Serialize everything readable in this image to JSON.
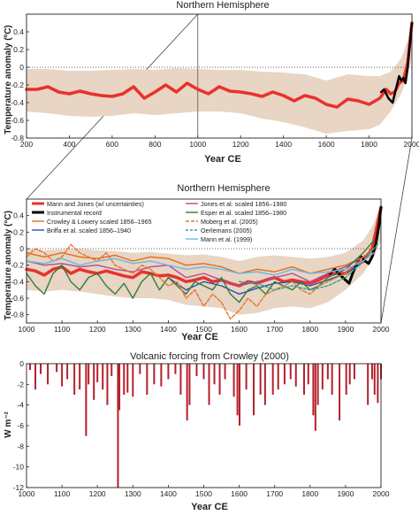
{
  "chart_data": [
    {
      "type": "line",
      "title": "Northern Hemisphere",
      "xlabel": "Year CE",
      "ylabel": "Temperature anomaly (ºC)",
      "xlim": [
        200,
        2000
      ],
      "ylim": [
        -0.8,
        0.6
      ],
      "xticks": [
        "200",
        "400",
        "600",
        "800",
        "1000",
        "1200",
        "1400",
        "1600",
        "1800",
        "2000"
      ],
      "yticks": [
        "0.4",
        "0.2",
        "0",
        "-0.2",
        "-0.4",
        "-0.6",
        "-0.8"
      ],
      "xtick_values": [
        200,
        400,
        600,
        800,
        1000,
        1200,
        1400,
        1600,
        1800,
        2000
      ],
      "ytick_values": [
        0.4,
        0.2,
        0,
        -0.2,
        -0.4,
        -0.6,
        -0.8
      ],
      "reference_line": 0,
      "highlight_year": 1000,
      "uncertainty_band": {
        "color": "#e8d5c4",
        "x": [
          200,
          300,
          400,
          500,
          600,
          700,
          800,
          900,
          1000,
          1100,
          1200,
          1300,
          1400,
          1500,
          1600,
          1700,
          1800,
          1850,
          1900,
          1950,
          1980,
          2000
        ],
        "upper": [
          -0.02,
          -0.02,
          -0.04,
          -0.04,
          -0.03,
          -0.02,
          -0.03,
          -0.01,
          -0.02,
          -0.03,
          -0.03,
          -0.05,
          -0.06,
          -0.08,
          -0.15,
          -0.08,
          -0.1,
          -0.1,
          -0.05,
          0.1,
          0.3,
          0.5
        ],
        "lower": [
          -0.5,
          -0.52,
          -0.55,
          -0.56,
          -0.55,
          -0.52,
          -0.54,
          -0.52,
          -0.5,
          -0.5,
          -0.52,
          -0.58,
          -0.62,
          -0.68,
          -0.75,
          -0.72,
          -0.7,
          -0.65,
          -0.5,
          -0.3,
          -0.1,
          0.1
        ]
      },
      "series": [
        {
          "color": "#e8322b",
          "width": 3.5,
          "x": [
            200,
            250,
            300,
            350,
            400,
            450,
            500,
            550,
            600,
            650,
            700,
            750,
            800,
            850,
            900,
            950,
            1000,
            1050,
            1100,
            1150,
            1200,
            1250,
            1300,
            1350,
            1400,
            1450,
            1500,
            1550,
            1600,
            1650,
            1700,
            1750,
            1800,
            1850,
            1880,
            1900,
            1920,
            1940,
            1960,
            1980,
            2000
          ],
          "y": [
            -0.25,
            -0.25,
            -0.22,
            -0.28,
            -0.3,
            -0.27,
            -0.3,
            -0.32,
            -0.33,
            -0.3,
            -0.22,
            -0.35,
            -0.28,
            -0.2,
            -0.28,
            -0.18,
            -0.25,
            -0.3,
            -0.22,
            -0.27,
            -0.28,
            -0.3,
            -0.33,
            -0.28,
            -0.32,
            -0.38,
            -0.32,
            -0.35,
            -0.42,
            -0.45,
            -0.36,
            -0.38,
            -0.42,
            -0.35,
            -0.25,
            -0.3,
            -0.28,
            -0.18,
            -0.15,
            0.05,
            0.5
          ]
        },
        {
          "color": "#000000",
          "width": 2.5,
          "x": [
            1856,
            1870,
            1890,
            1910,
            1920,
            1940,
            1950,
            1960,
            1970,
            1980,
            1990,
            2000
          ],
          "y": [
            -0.28,
            -0.25,
            -0.35,
            -0.4,
            -0.3,
            -0.1,
            -0.15,
            -0.12,
            -0.18,
            0.0,
            0.25,
            0.5
          ]
        }
      ]
    },
    {
      "type": "line",
      "title": "Northern Hemisphere",
      "xlabel": "Year CE",
      "ylabel": "Temperature anomaly (°C)",
      "xlim": [
        1000,
        2000
      ],
      "ylim": [
        -0.9,
        0.6
      ],
      "xticks": [
        "1000",
        "1100",
        "1200",
        "1300",
        "1400",
        "1500",
        "1600",
        "1700",
        "1800",
        "1900",
        "2000"
      ],
      "yticks": [
        "0.4",
        "0.2",
        "0",
        "-0.2",
        "-0.4",
        "-0.6",
        "-0.8"
      ],
      "xtick_values": [
        1000,
        1100,
        1200,
        1300,
        1400,
        1500,
        1600,
        1700,
        1800,
        1900,
        2000
      ],
      "ytick_values": [
        0.4,
        0.2,
        0,
        -0.2,
        -0.4,
        -0.6,
        -0.8
      ],
      "reference_line": 0,
      "uncertainty_band": {
        "color": "#e8d5c4",
        "x": [
          1000,
          1050,
          1100,
          1150,
          1200,
          1250,
          1300,
          1350,
          1400,
          1450,
          1500,
          1550,
          1600,
          1650,
          1700,
          1750,
          1800,
          1850,
          1900,
          1950,
          1980,
          2000
        ],
        "upper": [
          0.0,
          -0.02,
          -0.01,
          0.0,
          -0.02,
          -0.03,
          -0.05,
          -0.04,
          -0.06,
          -0.08,
          -0.07,
          -0.1,
          -0.15,
          -0.1,
          -0.08,
          -0.1,
          -0.12,
          -0.1,
          -0.05,
          0.1,
          0.3,
          0.55
        ],
        "lower": [
          -0.5,
          -0.52,
          -0.5,
          -0.52,
          -0.55,
          -0.58,
          -0.6,
          -0.6,
          -0.62,
          -0.68,
          -0.7,
          -0.72,
          -0.8,
          -0.78,
          -0.72,
          -0.7,
          -0.72,
          -0.65,
          -0.5,
          -0.3,
          -0.1,
          0.1
        ]
      },
      "series": [
        {
          "name": "Mann and Jones (w/ uncertainties)",
          "color": "#e8322b",
          "width": 3.5,
          "x": [
            1000,
            1025,
            1050,
            1075,
            1100,
            1125,
            1150,
            1175,
            1200,
            1225,
            1250,
            1275,
            1300,
            1325,
            1350,
            1375,
            1400,
            1425,
            1450,
            1475,
            1500,
            1525,
            1550,
            1575,
            1600,
            1625,
            1650,
            1675,
            1700,
            1725,
            1750,
            1775,
            1800,
            1825,
            1850,
            1875,
            1900,
            1925,
            1950,
            1975,
            2000
          ],
          "y": [
            -0.25,
            -0.27,
            -0.32,
            -0.25,
            -0.22,
            -0.3,
            -0.25,
            -0.28,
            -0.3,
            -0.27,
            -0.3,
            -0.33,
            -0.35,
            -0.28,
            -0.3,
            -0.33,
            -0.32,
            -0.35,
            -0.4,
            -0.38,
            -0.35,
            -0.4,
            -0.38,
            -0.42,
            -0.45,
            -0.4,
            -0.42,
            -0.38,
            -0.35,
            -0.4,
            -0.38,
            -0.4,
            -0.42,
            -0.38,
            -0.32,
            -0.3,
            -0.3,
            -0.22,
            -0.15,
            0.0,
            0.5
          ]
        },
        {
          "name": "Instrumental record",
          "color": "#000000",
          "width": 3,
          "x": [
            1856,
            1870,
            1885,
            1900,
            1910,
            1920,
            1935,
            1945,
            1955,
            1965,
            1975,
            1985,
            1995,
            2000
          ],
          "y": [
            -0.3,
            -0.25,
            -0.32,
            -0.38,
            -0.42,
            -0.3,
            -0.15,
            -0.1,
            -0.15,
            -0.18,
            -0.1,
            0.05,
            0.3,
            0.5
          ]
        },
        {
          "name": "Crowley & Lowery scaled 1856–1965",
          "color": "#e46c1a",
          "width": 1.4,
          "x": [
            1000,
            1050,
            1100,
            1150,
            1200,
            1250,
            1300,
            1350,
            1400,
            1450,
            1500,
            1550,
            1600,
            1650,
            1700,
            1750,
            1800,
            1850,
            1900,
            1950,
            1965
          ],
          "y": [
            -0.05,
            -0.1,
            -0.05,
            -0.1,
            -0.12,
            -0.08,
            -0.15,
            -0.1,
            -0.12,
            -0.2,
            -0.18,
            -0.22,
            -0.3,
            -0.25,
            -0.28,
            -0.22,
            -0.3,
            -0.25,
            -0.2,
            -0.1,
            -0.05
          ]
        },
        {
          "name": "Briffa et al. scaled 1856–1940",
          "color": "#2e4fb2",
          "width": 1.4,
          "x": [
            1400,
            1450,
            1500,
            1550,
            1600,
            1650,
            1700,
            1750,
            1800,
            1850,
            1900,
            1940
          ],
          "y": [
            -0.35,
            -0.5,
            -0.4,
            -0.45,
            -0.55,
            -0.48,
            -0.42,
            -0.4,
            -0.45,
            -0.38,
            -0.3,
            -0.2
          ]
        },
        {
          "name": "Jones et al. scaled 1856–1980",
          "color": "#b04a9c",
          "width": 1.4,
          "x": [
            1000,
            1050,
            1100,
            1150,
            1200,
            1250,
            1300,
            1350,
            1400,
            1450,
            1500,
            1550,
            1600,
            1650,
            1700,
            1750,
            1800,
            1850,
            1900,
            1950,
            1980
          ],
          "y": [
            -0.15,
            -0.2,
            -0.18,
            -0.22,
            -0.2,
            -0.25,
            -0.28,
            -0.22,
            -0.2,
            -0.35,
            -0.3,
            -0.38,
            -0.45,
            -0.4,
            -0.35,
            -0.3,
            -0.4,
            -0.3,
            -0.22,
            -0.1,
            0.0
          ]
        },
        {
          "name": "Esper et al. scaled 1856–1980",
          "color": "#2f7d3b",
          "width": 1.4,
          "x": [
            1000,
            1025,
            1050,
            1075,
            1100,
            1125,
            1150,
            1175,
            1200,
            1225,
            1250,
            1275,
            1300,
            1325,
            1350,
            1375,
            1400,
            1425,
            1450,
            1475,
            1500,
            1525,
            1550,
            1575,
            1600,
            1625,
            1650,
            1675,
            1700,
            1725,
            1750,
            1775,
            1800,
            1825,
            1850,
            1875,
            1900,
            1925,
            1950,
            1980
          ],
          "y": [
            -0.3,
            -0.45,
            -0.55,
            -0.3,
            -0.2,
            -0.4,
            -0.5,
            -0.35,
            -0.3,
            -0.45,
            -0.55,
            -0.42,
            -0.6,
            -0.4,
            -0.3,
            -0.5,
            -0.35,
            -0.45,
            -0.55,
            -0.4,
            -0.45,
            -0.5,
            -0.35,
            -0.55,
            -0.65,
            -0.5,
            -0.45,
            -0.55,
            -0.4,
            -0.45,
            -0.5,
            -0.4,
            -0.5,
            -0.45,
            -0.35,
            -0.3,
            -0.25,
            -0.15,
            -0.05,
            0.1
          ]
        },
        {
          "name": "Moberg et al. (2005)",
          "color": "#e8742a",
          "width": 1.4,
          "dash": "4,2",
          "x": [
            1000,
            1025,
            1050,
            1075,
            1100,
            1125,
            1150,
            1175,
            1200,
            1225,
            1250,
            1275,
            1300,
            1325,
            1350,
            1375,
            1400,
            1425,
            1450,
            1475,
            1500,
            1525,
            1550,
            1575,
            1600,
            1625,
            1650,
            1675,
            1700,
            1725,
            1750,
            1775,
            1800,
            1825,
            1850,
            1875,
            1900,
            1925,
            1950,
            1979
          ],
          "y": [
            -0.1,
            0.0,
            -0.05,
            -0.15,
            -0.1,
            0.05,
            -0.05,
            -0.1,
            -0.15,
            -0.05,
            -0.2,
            -0.25,
            -0.3,
            -0.2,
            -0.25,
            -0.35,
            -0.45,
            -0.4,
            -0.6,
            -0.5,
            -0.7,
            -0.55,
            -0.65,
            -0.85,
            -0.75,
            -0.6,
            -0.7,
            -0.55,
            -0.5,
            -0.45,
            -0.4,
            -0.5,
            -0.55,
            -0.45,
            -0.4,
            -0.35,
            -0.3,
            -0.2,
            -0.1,
            0.0
          ]
        },
        {
          "name": "Oerlemans (2005)",
          "color": "#2aa58e",
          "width": 1.4,
          "dash": "3,2",
          "x": [
            1600,
            1650,
            1700,
            1750,
            1800,
            1850,
            1900,
            1950,
            1990
          ],
          "y": [
            -0.4,
            -0.42,
            -0.5,
            -0.45,
            -0.5,
            -0.45,
            -0.35,
            -0.15,
            0.05
          ]
        },
        {
          "name": "Mann et al. (1999)",
          "color": "#6ab8e6",
          "width": 1.4,
          "x": [
            1000,
            1050,
            1100,
            1150,
            1200,
            1250,
            1300,
            1350,
            1400,
            1450,
            1500,
            1550,
            1600,
            1650,
            1700,
            1750,
            1800,
            1850,
            1900,
            1950,
            1980
          ],
          "y": [
            -0.15,
            -0.18,
            -0.12,
            -0.2,
            -0.15,
            -0.12,
            -0.18,
            -0.15,
            -0.2,
            -0.25,
            -0.22,
            -0.25,
            -0.3,
            -0.28,
            -0.32,
            -0.25,
            -0.3,
            -0.28,
            -0.25,
            -0.15,
            -0.05
          ]
        }
      ]
    },
    {
      "type": "bar",
      "title": "Volcanic forcing from Crowley (2000)",
      "xlabel": "Year CE",
      "ylabel": "W m⁻²",
      "xlim": [
        1000,
        2000
      ],
      "ylim": [
        -12,
        0
      ],
      "xticks": [
        "1000",
        "1100",
        "1200",
        "1300",
        "1400",
        "1500",
        "1600",
        "1700",
        "1800",
        "1900",
        "2000"
      ],
      "yticks": [
        "0",
        "-2",
        "-4",
        "-6",
        "-8",
        "-10",
        "-12"
      ],
      "xtick_values": [
        1000,
        1100,
        1200,
        1300,
        1400,
        1500,
        1600,
        1700,
        1800,
        1900,
        2000
      ],
      "ytick_values": [
        0,
        -2,
        -4,
        -6,
        -8,
        -10,
        -12
      ],
      "color": "#b5202a",
      "x": [
        1010,
        1025,
        1040,
        1060,
        1085,
        1100,
        1115,
        1135,
        1150,
        1168,
        1175,
        1190,
        1200,
        1215,
        1228,
        1240,
        1258,
        1262,
        1275,
        1285,
        1300,
        1320,
        1340,
        1360,
        1380,
        1400,
        1420,
        1435,
        1453,
        1460,
        1480,
        1500,
        1515,
        1530,
        1545,
        1560,
        1585,
        1595,
        1601,
        1620,
        1641,
        1660,
        1673,
        1695,
        1710,
        1728,
        1745,
        1760,
        1783,
        1795,
        1809,
        1815,
        1822,
        1835,
        1850,
        1862,
        1883,
        1902,
        1912,
        1925,
        1963,
        1975,
        1982,
        1991,
        2000
      ],
      "y": [
        -0.6,
        -2.5,
        -1.0,
        -2.0,
        -0.8,
        -2.2,
        -1.5,
        -3.0,
        -2.5,
        -7.0,
        -2.0,
        -3.5,
        -1.8,
        -2.5,
        -4.0,
        -1.2,
        -12.0,
        -4.5,
        -3.0,
        -2.8,
        -3.2,
        -1.0,
        -3.0,
        -2.0,
        -2.2,
        -1.5,
        -1.0,
        -3.0,
        -5.5,
        -4.0,
        -1.2,
        -1.5,
        -4.0,
        -2.0,
        -3.0,
        -1.5,
        -3.2,
        -5.0,
        -6.0,
        -2.5,
        -5.0,
        -3.0,
        -4.0,
        -3.0,
        -2.5,
        -2.0,
        -1.5,
        -2.2,
        -3.0,
        -2.0,
        -5.0,
        -6.5,
        -4.0,
        -2.5,
        -1.5,
        -3.0,
        -5.5,
        -3.0,
        -2.0,
        -1.5,
        -4.0,
        -1.5,
        -3.0,
        -3.8,
        -1.5
      ]
    }
  ]
}
